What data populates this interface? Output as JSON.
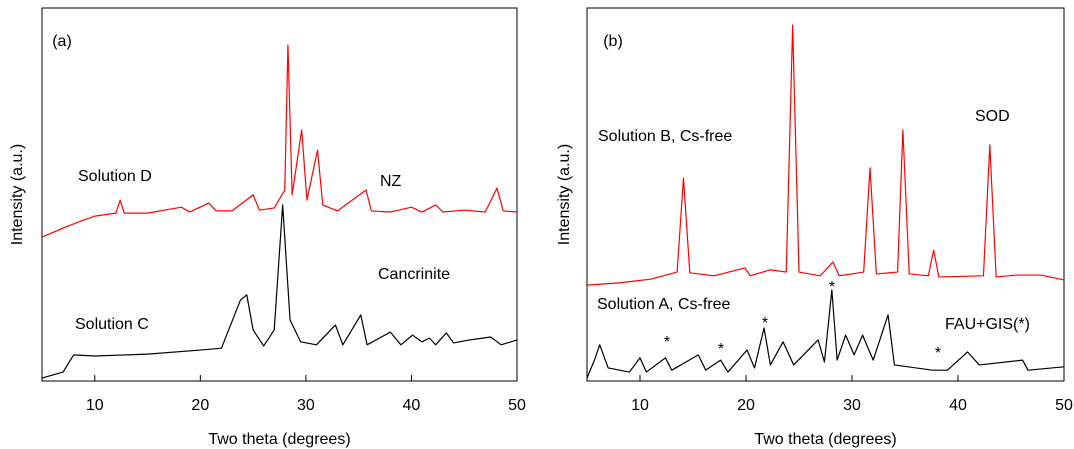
{
  "chart_data": [
    {
      "type": "line",
      "title": "(a)",
      "x_label": "Two theta (degrees)",
      "y_label": "Intensity (a.u.)",
      "xlim": [
        5,
        50
      ],
      "xticks": [
        10,
        20,
        30,
        40,
        50
      ],
      "ylim": [
        0,
        100
      ],
      "annotations": [
        "NZ",
        "Cancrinite"
      ],
      "series": [
        {
          "name": "Solution D",
          "color": "#ff0000",
          "x": [
            5,
            7,
            9,
            10,
            12,
            12.4,
            12.8,
            15,
            18.2,
            19,
            20.8,
            21.5,
            23,
            25,
            25.6,
            27,
            28.0,
            28.3,
            28.7,
            29.6,
            30.1,
            31.1,
            31.6,
            33,
            35.7,
            36.2,
            38,
            40,
            41,
            42.3,
            43,
            45,
            47,
            48.1,
            48.7,
            50
          ],
          "values": [
            38.6,
            41.0,
            43.2,
            44.2,
            45.0,
            48.5,
            45.0,
            45.0,
            46.6,
            45.3,
            47.7,
            45.6,
            45.6,
            49.9,
            45.8,
            46.4,
            51.2,
            90.1,
            49.9,
            67.3,
            48.5,
            61.9,
            47.2,
            45.6,
            51.2,
            45.6,
            45.3,
            46.6,
            45.3,
            47.2,
            45.3,
            45.8,
            45.3,
            51.7,
            45.6,
            45.3
          ]
        },
        {
          "name": "Solution C",
          "color": "#000000",
          "x": [
            5,
            7,
            8,
            10,
            15,
            20,
            22,
            23.8,
            24.4,
            25,
            26,
            27,
            27.8,
            28.5,
            29.5,
            31,
            32.8,
            33.5,
            35.2,
            35.8,
            38,
            39,
            40.1,
            41,
            41.7,
            42.3,
            43.3,
            44,
            45.5,
            47.5,
            48.5,
            50
          ],
          "values": [
            0.8,
            2.4,
            7.0,
            6.7,
            7.2,
            8.3,
            8.8,
            21.7,
            23.1,
            13.7,
            9.4,
            13.7,
            47.2,
            16.4,
            10.5,
            9.7,
            15.0,
            9.7,
            17.7,
            9.7,
            13.1,
            9.7,
            12.3,
            10.5,
            11.5,
            9.7,
            12.9,
            10.2,
            11.0,
            11.8,
            9.7,
            11.0
          ]
        }
      ]
    },
    {
      "type": "line",
      "title": "(b)",
      "x_label": "Two theta (degrees)",
      "y_label": "Intensity (a.u.)",
      "xlim": [
        5,
        50
      ],
      "xticks": [
        10,
        20,
        30,
        40,
        50
      ],
      "ylim": [
        0,
        100
      ],
      "annotations": [
        "SOD",
        "FAU+GIS(*)",
        "*",
        "*",
        "*",
        "*",
        "*"
      ],
      "series": [
        {
          "name": "Solution B, Cs-free",
          "color": "#ff0000",
          "x": [
            5,
            8,
            11,
            13.5,
            14.1,
            14.7,
            17,
            19.9,
            20.4,
            22.3,
            23.8,
            24.4,
            25,
            27,
            28.2,
            28.8,
            31.1,
            31.7,
            32.3,
            34.3,
            34.8,
            35.4,
            37.2,
            37.7,
            38.2,
            42.4,
            43.0,
            43.6,
            45.5,
            47.8,
            50
          ],
          "values": [
            25.7,
            26.3,
            27.3,
            29.2,
            54.4,
            29.0,
            28.2,
            30.3,
            28.2,
            29.8,
            29.2,
            95.4,
            29.2,
            28.2,
            31.9,
            28.2,
            29.2,
            57.1,
            28.7,
            29.2,
            67.3,
            28.7,
            28.2,
            35.1,
            27.9,
            28.2,
            63.3,
            27.9,
            28.4,
            28.4,
            27.1
          ]
        },
        {
          "name": "Solution A, Cs-free",
          "color": "#000000",
          "x": [
            5,
            5.7,
            6.2,
            7,
            9,
            10,
            10.6,
            12.4,
            13,
            15.5,
            16.2,
            17.6,
            18.3,
            20.1,
            20.8,
            21.7,
            22.3,
            23.5,
            24.5,
            26.8,
            27.4,
            28.1,
            28.6,
            29.4,
            30.2,
            31,
            32,
            33.4,
            34,
            37.6,
            39,
            40.9,
            42,
            46.1,
            46.6,
            50
          ],
          "values": [
            0.8,
            5.6,
            9.7,
            3.5,
            2.4,
            6.2,
            2.4,
            6.2,
            2.9,
            7.0,
            2.9,
            5.6,
            2.4,
            8.3,
            3.5,
            14.2,
            4.3,
            10.5,
            4.3,
            11.0,
            5.1,
            24.4,
            5.6,
            12.3,
            7.0,
            12.3,
            5.6,
            17.7,
            4.3,
            2.9,
            2.9,
            7.8,
            4.3,
            5.6,
            2.9,
            3.8
          ]
        }
      ]
    }
  ]
}
